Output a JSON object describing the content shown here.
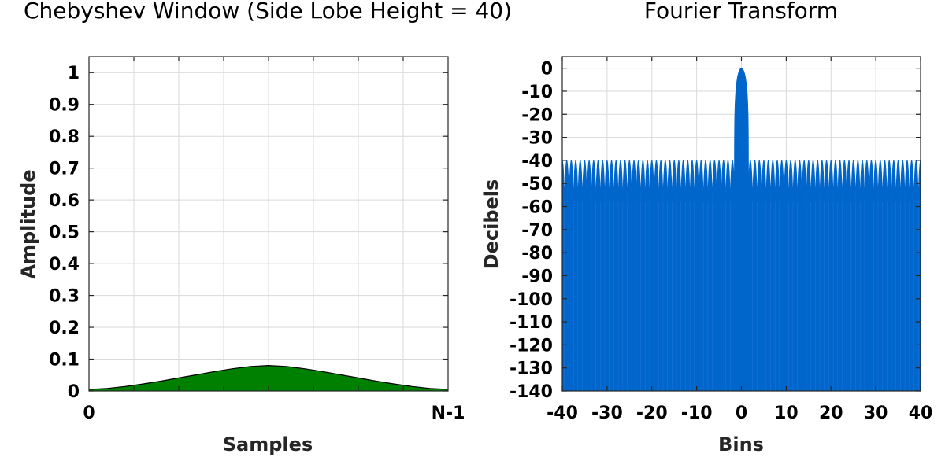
{
  "chart_data": [
    {
      "type": "area",
      "title": "Chebyshev Window (Side Lobe Height = 40)",
      "xlabel": "Samples",
      "ylabel": "Amplitude",
      "x_tick_labels": [
        "0",
        "N-1"
      ],
      "y_ticks": [
        0,
        0.1,
        0.2,
        0.3,
        0.4,
        0.5,
        0.6,
        0.7,
        0.8,
        0.9,
        1
      ],
      "y_tick_labels": [
        "0",
        "0.1",
        "0.2",
        "0.3",
        "0.4",
        "0.5",
        "0.6",
        "0.7",
        "0.8",
        "0.9",
        "1"
      ],
      "ylim": [
        0,
        1.05
      ],
      "grid": true,
      "fill_color": "#008000",
      "line_color": "#000000",
      "series": [
        {
          "x": [
            0,
            0.05,
            0.1,
            0.15,
            0.2,
            0.25,
            0.3,
            0.35,
            0.4,
            0.45,
            0.5,
            0.55,
            0.6,
            0.65,
            0.7,
            0.75,
            0.8,
            0.85,
            0.9,
            0.95,
            1
          ],
          "values": [
            0.005,
            0.008,
            0.014,
            0.022,
            0.031,
            0.041,
            0.051,
            0.061,
            0.07,
            0.077,
            0.08,
            0.077,
            0.07,
            0.061,
            0.051,
            0.041,
            0.031,
            0.022,
            0.014,
            0.008,
            0.005
          ]
        }
      ]
    },
    {
      "type": "area",
      "title": "Fourier Transform",
      "xlabel": "Bins",
      "ylabel": "Decibels",
      "x_ticks": [
        -40,
        -30,
        -20,
        -10,
        0,
        10,
        20,
        30,
        40
      ],
      "x_tick_labels": [
        "-40",
        "-30",
        "-20",
        "-10",
        "0",
        "10",
        "20",
        "30",
        "40"
      ],
      "y_ticks": [
        0,
        -10,
        -20,
        -30,
        -40,
        -50,
        -60,
        -70,
        -80,
        -90,
        -100,
        -110,
        -120,
        -130,
        -140
      ],
      "y_tick_labels": [
        "0",
        "-10",
        "-20",
        "-30",
        "-40",
        "-50",
        "-60",
        "-70",
        "-80",
        "-90",
        "-100",
        "-110",
        "-120",
        "-130",
        "-140"
      ],
      "xlim": [
        -40,
        40
      ],
      "ylim": [
        -140,
        5
      ],
      "grid": true,
      "fill_color": "#0066cc",
      "main_lobe": {
        "peak_db": 0,
        "half_width_bins": 1.6
      },
      "side_lobe_peak_db": -40,
      "side_lobe_floor_db": -58,
      "side_lobe_spacing_bins": 1
    }
  ]
}
